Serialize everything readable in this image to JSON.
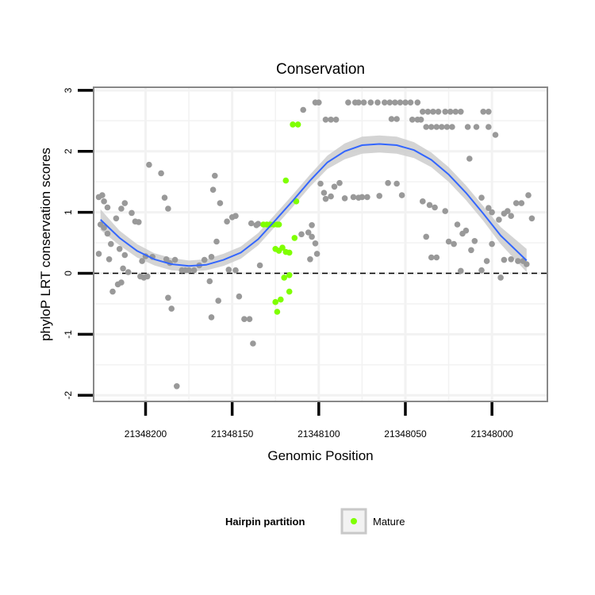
{
  "chart_data": {
    "type": "scatter",
    "title": "Conservation",
    "xlabel": "Genomic Position",
    "ylabel": "phyloP LRT conservation scores",
    "x_reversed": true,
    "xlim": [
      21348230,
      21347968
    ],
    "ylim": [
      -2.1,
      3.05
    ],
    "x_ticks": [
      21348200,
      21348150,
      21348100,
      21348050,
      21348000
    ],
    "x_tick_labels": [
      "21348200",
      "21348150",
      "21348100",
      "21348050",
      "21348000"
    ],
    "y_ticks": [
      -2,
      -1,
      0,
      1,
      2,
      3
    ],
    "y_tick_labels": [
      "-2",
      "-1",
      "0",
      "1",
      "2",
      "3"
    ],
    "reference_line": {
      "y": 0,
      "style": "dashed"
    },
    "colors": {
      "other_points": "#999999",
      "mature_points": "#7FFF00",
      "smooth_line": "#3366FF",
      "confidence_band": "#cccccc",
      "reference_line": "#000000",
      "panel_border": "#888888",
      "grid": "#f2f2f2"
    },
    "legend": {
      "title": "Hairpin partition",
      "position": "bottom",
      "entries": [
        {
          "label": "Mature",
          "color": "#7FFF00"
        }
      ]
    },
    "series": [
      {
        "name": "other",
        "color": "#999999",
        "points": [
          [
            21348227,
            1.25
          ],
          [
            21348225,
            1.28
          ],
          [
            21348224,
            1.18
          ],
          [
            21348222,
            1.08
          ],
          [
            21348226,
            0.8
          ],
          [
            21348224,
            0.75
          ],
          [
            21348227,
            0.32
          ],
          [
            21348222,
            0.65
          ],
          [
            21348220,
            0.48
          ],
          [
            21348221,
            0.23
          ],
          [
            21348219,
            -0.3
          ],
          [
            21348216,
            -0.18
          ],
          [
            21348214,
            -0.15
          ],
          [
            21348217,
            0.9
          ],
          [
            21348214,
            1.06
          ],
          [
            21348212,
            1.15
          ],
          [
            21348208,
            0.99
          ],
          [
            21348206,
            0.85
          ],
          [
            21348204,
            0.84
          ],
          [
            21348215,
            0.4
          ],
          [
            21348212,
            0.3
          ],
          [
            21348213,
            0.08
          ],
          [
            21348210,
            0.02
          ],
          [
            21348203,
            -0.05
          ],
          [
            21348201,
            -0.07
          ],
          [
            21348199,
            -0.05
          ],
          [
            21348200,
            0.28
          ],
          [
            21348196,
            0.27
          ],
          [
            21348202,
            0.2
          ],
          [
            21348198,
            1.78
          ],
          [
            21348191,
            1.64
          ],
          [
            21348189,
            1.24
          ],
          [
            21348187,
            1.06
          ],
          [
            21348188,
            0.23
          ],
          [
            21348186,
            0.17
          ],
          [
            21348183,
            0.22
          ],
          [
            21348187,
            -0.4
          ],
          [
            21348185,
            -0.58
          ],
          [
            21348182,
            -1.85
          ],
          [
            21348179,
            0.05
          ],
          [
            21348177,
            0.05
          ],
          [
            21348175,
            0.05
          ],
          [
            21348172,
            0.05
          ],
          [
            21348169,
            0.13
          ],
          [
            21348166,
            0.22
          ],
          [
            21348162,
            0.27
          ],
          [
            21348163,
            -0.13
          ],
          [
            21348160,
            1.6
          ],
          [
            21348161,
            1.37
          ],
          [
            21348157,
            1.15
          ],
          [
            21348159,
            0.52
          ],
          [
            21348158,
            -0.45
          ],
          [
            21348162,
            -0.72
          ],
          [
            21348153,
            0.85
          ],
          [
            21348150,
            0.92
          ],
          [
            21348148,
            0.94
          ],
          [
            21348152,
            0.06
          ],
          [
            21348148,
            0.05
          ],
          [
            21348146,
            -0.38
          ],
          [
            21348143,
            -0.75
          ],
          [
            21348140,
            -0.75
          ],
          [
            21348138,
            -1.15
          ],
          [
            21348139,
            0.82
          ],
          [
            21348136,
            0.79
          ],
          [
            21348135,
            0.81
          ],
          [
            21348134,
            0.13
          ],
          [
            21348109,
            2.68
          ],
          [
            21348102,
            2.8
          ],
          [
            21348100,
            2.8
          ],
          [
            21348096,
            2.52
          ],
          [
            21348093,
            2.52
          ],
          [
            21348090,
            2.52
          ],
          [
            21348110,
            0.64
          ],
          [
            21348106,
            0.67
          ],
          [
            21348104,
            0.6
          ],
          [
            21348102,
            0.49
          ],
          [
            21348101,
            0.32
          ],
          [
            21348105,
            0.23
          ],
          [
            21348104,
            0.79
          ],
          [
            21348099,
            1.47
          ],
          [
            21348097,
            1.32
          ],
          [
            21348096,
            1.22
          ],
          [
            21348093,
            1.26
          ],
          [
            21348091,
            1.42
          ],
          [
            21348088,
            1.48
          ],
          [
            21348085,
            1.23
          ],
          [
            21348083,
            2.8
          ],
          [
            21348079,
            2.8
          ],
          [
            21348077,
            2.8
          ],
          [
            21348074,
            2.8
          ],
          [
            21348070,
            2.8
          ],
          [
            21348066,
            2.8
          ],
          [
            21348062,
            2.8
          ],
          [
            21348059,
            2.8
          ],
          [
            21348056,
            2.8
          ],
          [
            21348053,
            2.8
          ],
          [
            21348050,
            2.8
          ],
          [
            21348047,
            2.8
          ],
          [
            21348043,
            2.8
          ],
          [
            21348058,
            2.53
          ],
          [
            21348055,
            2.53
          ],
          [
            21348046,
            2.52
          ],
          [
            21348043,
            2.52
          ],
          [
            21348041,
            2.52
          ],
          [
            21348040,
            2.65
          ],
          [
            21348037,
            2.65
          ],
          [
            21348034,
            2.65
          ],
          [
            21348031,
            2.65
          ],
          [
            21348027,
            2.65
          ],
          [
            21348024,
            2.65
          ],
          [
            21348038,
            2.4
          ],
          [
            21348035,
            2.4
          ],
          [
            21348032,
            2.4
          ],
          [
            21348029,
            2.4
          ],
          [
            21348026,
            2.4
          ],
          [
            21348023,
            2.4
          ],
          [
            21348021,
            2.65
          ],
          [
            21348018,
            2.65
          ],
          [
            21348014,
            2.4
          ],
          [
            21348005,
            2.65
          ],
          [
            21348002,
            2.65
          ],
          [
            21348009,
            2.4
          ],
          [
            21348002,
            2.4
          ],
          [
            21347998,
            2.27
          ],
          [
            21348080,
            1.25
          ],
          [
            21348077,
            1.24
          ],
          [
            21348075,
            1.25
          ],
          [
            21348072,
            1.25
          ],
          [
            21348065,
            1.27
          ],
          [
            21348060,
            1.48
          ],
          [
            21348055,
            1.47
          ],
          [
            21348052,
            1.28
          ],
          [
            21348040,
            1.18
          ],
          [
            21348036,
            1.12
          ],
          [
            21348033,
            1.08
          ],
          [
            21348027,
            1.02
          ],
          [
            21348038,
            0.6
          ],
          [
            21348035,
            0.26
          ],
          [
            21348032,
            0.26
          ],
          [
            21348025,
            0.52
          ],
          [
            21348022,
            0.48
          ],
          [
            21348020,
            0.8
          ],
          [
            21348017,
            0.65
          ],
          [
            21348015,
            0.7
          ],
          [
            21348012,
            0.38
          ],
          [
            21348010,
            0.53
          ],
          [
            21348013,
            1.88
          ],
          [
            21348006,
            1.24
          ],
          [
            21348002,
            1.07
          ],
          [
            21348000,
            1.0
          ],
          [
            21347996,
            0.88
          ],
          [
            21347993,
            0.98
          ],
          [
            21347991,
            1.02
          ],
          [
            21347989,
            0.94
          ],
          [
            21347986,
            1.15
          ],
          [
            21347983,
            1.15
          ],
          [
            21347979,
            1.28
          ],
          [
            21347977,
            0.9
          ],
          [
            21348018,
            0.04
          ],
          [
            21348006,
            0.05
          ],
          [
            21348003,
            0.2
          ],
          [
            21348000,
            0.48
          ],
          [
            21347993,
            0.22
          ],
          [
            21347989,
            0.23
          ],
          [
            21347985,
            0.2
          ],
          [
            21347982,
            0.2
          ],
          [
            21347980,
            0.15
          ],
          [
            21347995,
            -0.07
          ]
        ]
      },
      {
        "name": "Mature",
        "color": "#7FFF00",
        "points": [
          [
            21348132,
            0.8
          ],
          [
            21348130,
            0.8
          ],
          [
            21348128,
            0.8
          ],
          [
            21348126,
            0.8
          ],
          [
            21348124,
            0.8
          ],
          [
            21348123,
            0.8
          ],
          [
            21348119,
            1.52
          ],
          [
            21348115,
            2.44
          ],
          [
            21348112,
            2.44
          ],
          [
            21348113,
            1.18
          ],
          [
            21348114,
            0.58
          ],
          [
            21348125,
            0.4
          ],
          [
            21348123,
            0.37
          ],
          [
            21348121,
            0.42
          ],
          [
            21348119,
            0.35
          ],
          [
            21348117,
            0.34
          ],
          [
            21348125,
            -0.47
          ],
          [
            21348122,
            -0.43
          ],
          [
            21348124,
            -0.63
          ],
          [
            21348117,
            -0.3
          ],
          [
            21348120,
            -0.07
          ],
          [
            21348117,
            -0.03
          ]
        ]
      }
    ],
    "smooth_fit": {
      "method": "loess",
      "line": [
        [
          21348226,
          0.88
        ],
        [
          21348215,
          0.58
        ],
        [
          21348205,
          0.37
        ],
        [
          21348195,
          0.23
        ],
        [
          21348185,
          0.15
        ],
        [
          21348175,
          0.12
        ],
        [
          21348165,
          0.14
        ],
        [
          21348155,
          0.22
        ],
        [
          21348145,
          0.34
        ],
        [
          21348135,
          0.56
        ],
        [
          21348125,
          0.87
        ],
        [
          21348115,
          1.19
        ],
        [
          21348105,
          1.52
        ],
        [
          21348095,
          1.82
        ],
        [
          21348085,
          2.0
        ],
        [
          21348075,
          2.1
        ],
        [
          21348065,
          2.12
        ],
        [
          21348055,
          2.1
        ],
        [
          21348045,
          2.02
        ],
        [
          21348035,
          1.86
        ],
        [
          21348025,
          1.62
        ],
        [
          21348015,
          1.32
        ],
        [
          21348005,
          0.98
        ],
        [
          21347995,
          0.62
        ],
        [
          21347980,
          0.21
        ]
      ],
      "band_upper": [
        [
          21348226,
          1.05
        ],
        [
          21348215,
          0.7
        ],
        [
          21348205,
          0.48
        ],
        [
          21348195,
          0.33
        ],
        [
          21348185,
          0.25
        ],
        [
          21348175,
          0.21
        ],
        [
          21348165,
          0.23
        ],
        [
          21348155,
          0.32
        ],
        [
          21348145,
          0.44
        ],
        [
          21348135,
          0.66
        ],
        [
          21348125,
          0.97
        ],
        [
          21348115,
          1.29
        ],
        [
          21348105,
          1.62
        ],
        [
          21348095,
          1.93
        ],
        [
          21348085,
          2.13
        ],
        [
          21348075,
          2.24
        ],
        [
          21348065,
          2.26
        ],
        [
          21348055,
          2.24
        ],
        [
          21348045,
          2.15
        ],
        [
          21348035,
          1.98
        ],
        [
          21348025,
          1.74
        ],
        [
          21348015,
          1.44
        ],
        [
          21348005,
          1.1
        ],
        [
          21347995,
          0.76
        ],
        [
          21347980,
          0.4
        ]
      ],
      "band_lower": [
        [
          21348226,
          0.71
        ],
        [
          21348215,
          0.46
        ],
        [
          21348205,
          0.26
        ],
        [
          21348195,
          0.13
        ],
        [
          21348185,
          0.05
        ],
        [
          21348175,
          0.03
        ],
        [
          21348165,
          0.05
        ],
        [
          21348155,
          0.12
        ],
        [
          21348145,
          0.24
        ],
        [
          21348135,
          0.46
        ],
        [
          21348125,
          0.77
        ],
        [
          21348115,
          1.09
        ],
        [
          21348105,
          1.42
        ],
        [
          21348095,
          1.71
        ],
        [
          21348085,
          1.87
        ],
        [
          21348075,
          1.96
        ],
        [
          21348065,
          1.98
        ],
        [
          21348055,
          1.96
        ],
        [
          21348045,
          1.89
        ],
        [
          21348035,
          1.74
        ],
        [
          21348025,
          1.5
        ],
        [
          21348015,
          1.2
        ],
        [
          21348005,
          0.86
        ],
        [
          21347995,
          0.48
        ],
        [
          21347980,
          0.02
        ]
      ]
    }
  }
}
